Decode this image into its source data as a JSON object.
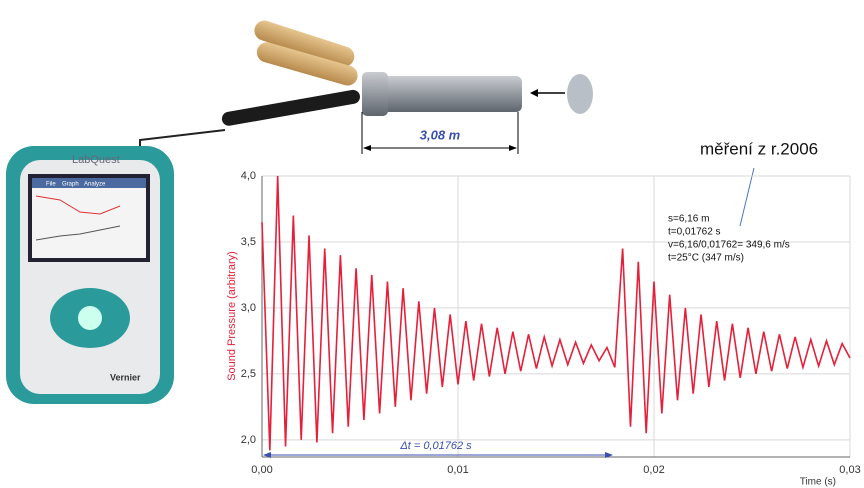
{
  "chart_data": {
    "type": "line",
    "x_label": "Time (s)",
    "y_label": "Sound Pressure (arbitrary)",
    "color": "#e5203a",
    "grid": true,
    "xlim": [
      0,
      0.03
    ],
    "ylim": [
      1.87,
      4.0
    ],
    "xticks": [
      {
        "value": 0,
        "label": "0,00"
      },
      {
        "value": 0.01,
        "label": "0,01"
      },
      {
        "value": 0.02,
        "label": "0,02"
      },
      {
        "value": 0.03,
        "label": "0,03"
      }
    ],
    "yticks": [
      {
        "value": 2.0,
        "label": "2,0"
      },
      {
        "value": 2.5,
        "label": "2,5"
      },
      {
        "value": 3.0,
        "label": "3,0"
      },
      {
        "value": 3.5,
        "label": "3,5"
      },
      {
        "value": 4.0,
        "label": "4,0"
      }
    ],
    "x": [
      0,
      0.0004,
      0.0008,
      0.0012,
      0.0016,
      0.002,
      0.0024,
      0.0028,
      0.0032,
      0.0036,
      0.004,
      0.0044,
      0.0048,
      0.0052,
      0.0056,
      0.006,
      0.0064,
      0.0068,
      0.0072,
      0.0076,
      0.008,
      0.0084,
      0.0088,
      0.0092,
      0.0096,
      0.01,
      0.0104,
      0.0108,
      0.0112,
      0.0116,
      0.012,
      0.0124,
      0.0128,
      0.0132,
      0.0136,
      0.014,
      0.0144,
      0.0148,
      0.0152,
      0.0156,
      0.016,
      0.0164,
      0.0168,
      0.0172,
      0.0176,
      0.018,
      0.0184,
      0.0188,
      0.0192,
      0.0196,
      0.02,
      0.0204,
      0.0208,
      0.0212,
      0.0216,
      0.022,
      0.0224,
      0.0228,
      0.0232,
      0.0236,
      0.024,
      0.0244,
      0.0248,
      0.0252,
      0.0256,
      0.026,
      0.0264,
      0.0268,
      0.0272,
      0.0276,
      0.028,
      0.0284,
      0.0288,
      0.0292,
      0.0296,
      0.03
    ],
    "values": [
      3.65,
      1.92,
      4.0,
      1.95,
      3.7,
      2.0,
      3.55,
      1.98,
      3.45,
      2.05,
      3.4,
      2.1,
      3.3,
      2.15,
      3.25,
      2.2,
      3.2,
      2.25,
      3.15,
      2.3,
      3.05,
      2.35,
      3.0,
      2.4,
      2.95,
      2.42,
      2.9,
      2.45,
      2.88,
      2.48,
      2.85,
      2.5,
      2.82,
      2.52,
      2.8,
      2.54,
      2.78,
      2.56,
      2.76,
      2.57,
      2.74,
      2.58,
      2.72,
      2.6,
      2.7,
      2.55,
      3.45,
      2.1,
      3.35,
      2.05,
      3.2,
      2.2,
      3.1,
      2.3,
      3.0,
      2.35,
      2.95,
      2.4,
      2.9,
      2.45,
      2.88,
      2.47,
      2.85,
      2.5,
      2.82,
      2.52,
      2.8,
      2.54,
      2.78,
      2.55,
      2.76,
      2.56,
      2.75,
      2.57,
      2.73,
      2.62
    ],
    "annotations": {
      "pipe_length": "3,08 m",
      "note": "měření z r.2006",
      "calc": [
        "s=6,16 m",
        "t=0,01762 s",
        "v=6,16/0,01762= 349,6 m/s",
        "t=25°C  (347 m/s)"
      ],
      "delta_t": "Δt = 0,01762 s"
    }
  },
  "device": {
    "brand": "LabQuest",
    "maker": "Vernier",
    "menu": [
      "File",
      "Graph",
      "Analyze"
    ]
  }
}
